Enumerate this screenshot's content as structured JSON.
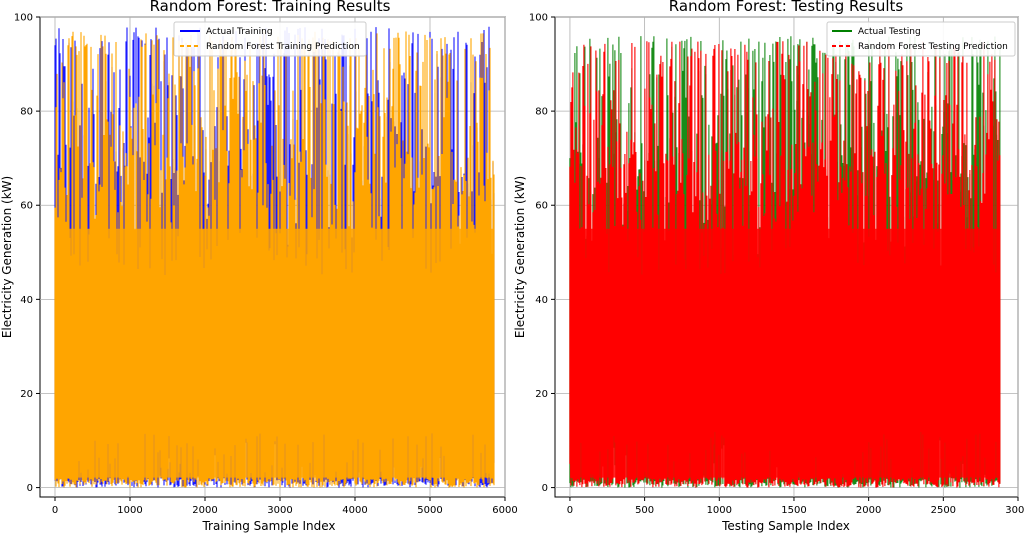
{
  "chart_data": [
    {
      "type": "line",
      "title": "Random Forest: Training Results",
      "xlabel": "Training Sample Index",
      "ylabel": "Electricity Generation (kW)",
      "xlim": [
        -200,
        6000
      ],
      "ylim": [
        -2,
        100
      ],
      "x_ticks": [
        0,
        1000,
        2000,
        3000,
        4000,
        5000,
        6000
      ],
      "y_ticks": [
        0,
        20,
        40,
        60,
        80,
        100
      ],
      "grid": true,
      "legend_position": "top-center",
      "n_points": 5850,
      "series": [
        {
          "name": "Actual Training",
          "color": "#0000ff",
          "style": "solid",
          "y_range": [
            0,
            98
          ]
        },
        {
          "name": "Random Forest Training Prediction",
          "color": "#ffa500",
          "style": "dashed",
          "y_range": [
            0,
            97
          ]
        }
      ]
    },
    {
      "type": "line",
      "title": "Random Forest: Testing Results",
      "xlabel": "Testing Sample Index",
      "ylabel": "Electricity Generation (kW)",
      "xlim": [
        -100,
        3000
      ],
      "ylim": [
        -2,
        100
      ],
      "x_ticks": [
        0,
        500,
        1000,
        1500,
        2000,
        2500,
        3000
      ],
      "y_ticks": [
        0,
        20,
        40,
        60,
        80,
        100
      ],
      "grid": true,
      "legend_position": "top-right",
      "n_points": 2880,
      "series": [
        {
          "name": "Actual Testing",
          "color": "#008000",
          "style": "solid",
          "y_range": [
            0,
            96
          ]
        },
        {
          "name": "Random Forest Testing Prediction",
          "color": "#ff0000",
          "style": "dashed",
          "y_range": [
            0,
            95
          ]
        }
      ]
    }
  ]
}
